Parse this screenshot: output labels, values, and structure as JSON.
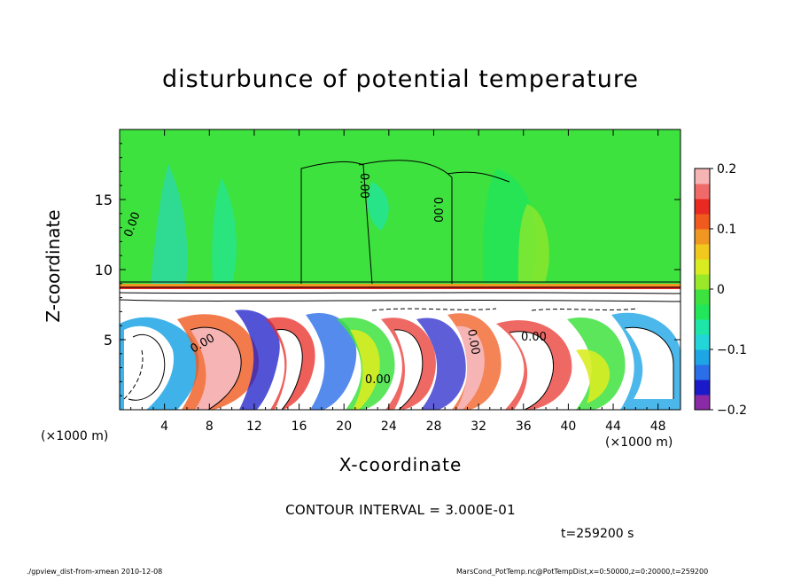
{
  "chart_data": {
    "type": "heatmap",
    "title": "disturbunce of potential temperature",
    "xlabel": "X-coordinate",
    "ylabel": "Z-coordinate",
    "x_unit_left": "(×1000 m)",
    "x_unit_right": "(×1000 m)",
    "xlim": [
      0,
      50
    ],
    "ylim": [
      0,
      20
    ],
    "x_ticks": [
      "4",
      "8",
      "12",
      "16",
      "20",
      "24",
      "28",
      "32",
      "36",
      "40",
      "44",
      "48"
    ],
    "x_tick_values": [
      4,
      8,
      12,
      16,
      20,
      24,
      28,
      32,
      36,
      40,
      44,
      48
    ],
    "y_ticks": [
      "5",
      "10",
      "15"
    ],
    "y_tick_values": [
      5,
      10,
      15
    ],
    "colorbar": {
      "range": [
        -0.2,
        0.2
      ],
      "tick_labels": [
        "0.2",
        "0.1",
        "0",
        "−0.1",
        "−0.2"
      ],
      "tick_values": [
        0.2,
        0.1,
        0,
        -0.1,
        -0.2
      ],
      "colors": [
        "#8b2aa6",
        "#1a1ac8",
        "#2a6ee8",
        "#1ea5e6",
        "#23d5d8",
        "#1ee6a8",
        "#22e55a",
        "#3ee23e",
        "#9ae82a",
        "#d9ec22",
        "#f0c81e",
        "#f09622",
        "#f05a1e",
        "#e82a22",
        "#f06a6a",
        "#f7b4b4"
      ]
    },
    "contour_interval": "CONTOUR INTERVAL = 3.000E-01",
    "contour_labels": [
      "0.00",
      "0.00",
      "0.00",
      "0.00",
      "0.00",
      "0.00",
      "0.00"
    ],
    "time_label": "t=259200 s",
    "grid": false
  },
  "footer": {
    "left": "./gpview_dist-from-xmean   2010-12-08",
    "right": "MarsCond_PotTemp.nc@PotTempDist,x=0:50000,z=0:20000,t=259200"
  }
}
